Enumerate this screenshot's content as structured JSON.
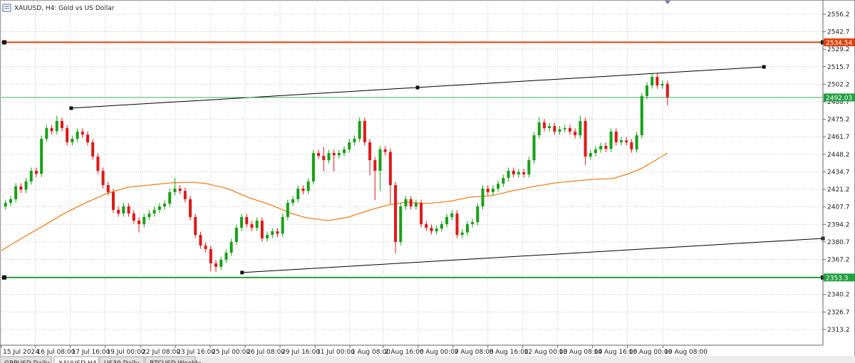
{
  "chart_data": {
    "type": "candlestick",
    "title": "XAUUSD, H4:  Gold vs US Dollar",
    "xlim": [
      -0.8,
      159.3
    ],
    "ylim": [
      2301.1,
      2564.4
    ],
    "grid": true,
    "up_color": "#18a018",
    "down_color": "#e01818",
    "xticks": [
      {
        "value": -0.8,
        "label": "15 Jul 2024"
      },
      {
        "value": 5.8,
        "label": "16 Jul 08:00"
      },
      {
        "value": 12.6,
        "label": "17 Jul 16:00"
      },
      {
        "value": 19.4,
        "label": "19 Jul 00:00"
      },
      {
        "value": 26.3,
        "label": "22 Jul 08:00"
      },
      {
        "value": 33.1,
        "label": "23 Jul 16:00"
      },
      {
        "value": 39.9,
        "label": "25 Jul 00:00"
      },
      {
        "value": 46.7,
        "label": "26 Jul 08:00"
      },
      {
        "value": 53.5,
        "label": "29 Jul 16:00"
      },
      {
        "value": 60.3,
        "label": "31 Jul 00:00"
      },
      {
        "value": 67.1,
        "label": "1 Aug 08:00"
      },
      {
        "value": 73.6,
        "label": "2 Aug 16:00"
      },
      {
        "value": 80.4,
        "label": "6 Aug 00:00"
      },
      {
        "value": 87.2,
        "label": "7 Aug 08:00"
      },
      {
        "value": 94.0,
        "label": "8 Aug 16:00"
      },
      {
        "value": 100.8,
        "label": "12 Aug 00:00"
      },
      {
        "value": 107.6,
        "label": "13 Aug 08:00"
      },
      {
        "value": 114.4,
        "label": "14 Aug 16:00"
      },
      {
        "value": 121.2,
        "label": "16 Aug 00:00"
      },
      {
        "value": 128.1,
        "label": "19 Aug 08:00"
      }
    ],
    "yticks": [
      2313.2,
      2326.7,
      2340.2,
      2353.7,
      2367.2,
      2380.7,
      2394.2,
      2407.7,
      2421.2,
      2434.7,
      2448.2,
      2461.7,
      2475.2,
      2488.7,
      2502.2,
      2515.7,
      2529.2,
      2542.7,
      2556.2
    ],
    "open": [
      2408.1,
      2410.8,
      2413.6,
      2423.5,
      2421.0,
      2427.3,
      2435.5,
      2433.2,
      2460.2,
      2468.4,
      2466.0,
      2473.9,
      2468.4,
      2457.5,
      2460.2,
      2465.7,
      2463.4,
      2457.5,
      2446.5,
      2435.5,
      2424.5,
      2419.1,
      2405.4,
      2402.6,
      2408.1,
      2402.6,
      2397.1,
      2394.4,
      2399.9,
      2402.6,
      2405.4,
      2408.1,
      2410.2,
      2419.1,
      2421.8,
      2420.0,
      2413.6,
      2399.9,
      2386.1,
      2377.9,
      2375.2,
      2364.2,
      2361.5,
      2367.0,
      2372.4,
      2380.7,
      2391.6,
      2399.9,
      2394.4,
      2391.6,
      2397.1,
      2383.4,
      2386.1,
      2388.9,
      2387.0,
      2399.9,
      2410.8,
      2413.6,
      2421.8,
      2420.0,
      2427.3,
      2449.2,
      2447.0,
      2443.7,
      2449.2,
      2447.5,
      2449.2,
      2452.0,
      2457.5,
      2460.2,
      2473.9,
      2457.5,
      2443.7,
      2435.5,
      2452.0,
      2450.0,
      2424.5,
      2380.7,
      2408.1,
      2413.6,
      2408.1,
      2410.8,
      2394.4,
      2391.6,
      2388.9,
      2391.0,
      2394.4,
      2399.9,
      2402.6,
      2386.1,
      2388.0,
      2394.4,
      2396.0,
      2408.1,
      2421.8,
      2419.1,
      2421.8,
      2425.6,
      2430.0,
      2435.5,
      2432.8,
      2434.5,
      2432.8,
      2443.7,
      2462.9,
      2472.8,
      2468.4,
      2470.0,
      2465.7,
      2467.5,
      2468.4,
      2465.7,
      2462.9,
      2473.9,
      2446.5,
      2449.2,
      2452.0,
      2454.7,
      2452.5,
      2465.7,
      2457.5,
      2459.0,
      2457.5,
      2452.0,
      2462.9,
      2493.1,
      2501.3,
      2507.9,
      2501.3,
      2502.5
    ],
    "high": [
      2413.3,
      2416.1,
      2426.0,
      2426.0,
      2429.8,
      2438.0,
      2438.0,
      2462.7,
      2470.9,
      2470.9,
      2478.0,
      2476.4,
      2470.9,
      2462.7,
      2468.2,
      2468.2,
      2465.9,
      2460.0,
      2449.0,
      2438.0,
      2427.0,
      2421.6,
      2407.9,
      2410.6,
      2410.6,
      2405.1,
      2399.6,
      2402.4,
      2405.1,
      2407.9,
      2410.6,
      2412.7,
      2421.6,
      2430.0,
      2424.3,
      2422.5,
      2416.1,
      2402.4,
      2388.6,
      2380.4,
      2377.7,
      2366.7,
      2369.5,
      2374.9,
      2383.2,
      2394.1,
      2402.4,
      2402.4,
      2396.9,
      2399.6,
      2399.6,
      2388.6,
      2391.4,
      2391.4,
      2402.4,
      2413.3,
      2416.1,
      2424.3,
      2424.3,
      2429.8,
      2451.7,
      2451.7,
      2454.0,
      2451.7,
      2451.7,
      2451.7,
      2454.5,
      2460.0,
      2462.7,
      2476.7,
      2476.4,
      2460.0,
      2446.2,
      2454.5,
      2454.5,
      2452.5,
      2427.0,
      2410.6,
      2416.1,
      2416.1,
      2413.3,
      2413.3,
      2396.9,
      2394.1,
      2393.5,
      2396.9,
      2402.4,
      2405.1,
      2405.1,
      2390.5,
      2396.9,
      2398.5,
      2410.6,
      2424.3,
      2424.3,
      2424.3,
      2428.1,
      2432.5,
      2438.0,
      2438.0,
      2437.0,
      2437.0,
      2446.2,
      2465.4,
      2477.0,
      2475.3,
      2472.5,
      2472.5,
      2470.0,
      2470.9,
      2470.9,
      2468.2,
      2478.0,
      2476.4,
      2451.7,
      2454.5,
      2457.2,
      2457.2,
      2468.2,
      2468.2,
      2461.5,
      2461.5,
      2460.0,
      2465.4,
      2495.6,
      2503.8,
      2510.7,
      2510.4,
      2505.0,
      2505.0
    ],
    "low": [
      2405.6,
      2408.3,
      2411.1,
      2418.5,
      2418.5,
      2424.8,
      2430.7,
      2430.7,
      2457.7,
      2463.5,
      2463.5,
      2465.9,
      2455.0,
      2455.0,
      2457.7,
      2460.9,
      2455.0,
      2444.0,
      2433.0,
      2422.0,
      2416.6,
      2402.9,
      2400.1,
      2400.1,
      2400.1,
      2394.6,
      2388.0,
      2391.9,
      2397.4,
      2400.1,
      2402.9,
      2405.6,
      2407.7,
      2416.6,
      2417.5,
      2411.1,
      2397.4,
      2383.6,
      2375.4,
      2372.7,
      2358.0,
      2357.5,
      2359.0,
      2364.5,
      2369.9,
      2378.2,
      2389.1,
      2391.9,
      2389.1,
      2389.1,
      2380.9,
      2380.9,
      2383.6,
      2384.5,
      2384.5,
      2397.4,
      2408.3,
      2411.1,
      2417.5,
      2417.5,
      2424.8,
      2444.5,
      2435.0,
      2441.2,
      2435.0,
      2445.0,
      2446.7,
      2449.5,
      2455.0,
      2457.7,
      2455.0,
      2432.0,
      2413.0,
      2420.0,
      2447.5,
      2410.0,
      2372.0,
      2378.2,
      2405.6,
      2405.6,
      2405.6,
      2391.9,
      2389.1,
      2386.4,
      2386.4,
      2388.5,
      2391.9,
      2397.4,
      2383.6,
      2383.6,
      2385.5,
      2391.9,
      2393.5,
      2405.6,
      2416.6,
      2416.6,
      2419.3,
      2423.1,
      2427.5,
      2430.3,
      2430.3,
      2430.3,
      2430.3,
      2441.2,
      2460.4,
      2465.9,
      2465.9,
      2463.2,
      2463.2,
      2465.0,
      2463.2,
      2460.4,
      2460.4,
      2440.0,
      2444.0,
      2446.7,
      2449.5,
      2450.0,
      2450.0,
      2455.0,
      2455.0,
      2455.0,
      2449.5,
      2449.5,
      2460.4,
      2490.6,
      2498.8,
      2498.8,
      2498.8,
      2486.0
    ],
    "close": [
      2410.8,
      2413.6,
      2423.5,
      2421.0,
      2427.3,
      2435.5,
      2433.2,
      2460.2,
      2468.4,
      2466.0,
      2473.9,
      2468.4,
      2457.5,
      2460.2,
      2465.7,
      2463.4,
      2457.5,
      2446.5,
      2435.5,
      2424.5,
      2419.1,
      2405.4,
      2402.6,
      2408.1,
      2402.6,
      2397.1,
      2394.4,
      2399.9,
      2402.6,
      2405.4,
      2408.1,
      2410.2,
      2419.1,
      2421.8,
      2420.0,
      2413.6,
      2399.9,
      2386.1,
      2377.9,
      2375.2,
      2364.2,
      2361.5,
      2367.0,
      2372.4,
      2380.7,
      2391.6,
      2399.9,
      2394.4,
      2391.6,
      2397.1,
      2383.4,
      2386.1,
      2388.9,
      2387.0,
      2399.9,
      2410.8,
      2413.6,
      2421.8,
      2420.0,
      2427.3,
      2449.2,
      2447.0,
      2443.7,
      2449.2,
      2447.5,
      2449.2,
      2452.0,
      2457.5,
      2460.2,
      2473.9,
      2457.5,
      2443.7,
      2435.5,
      2452.0,
      2450.0,
      2424.5,
      2380.7,
      2408.1,
      2413.6,
      2408.1,
      2410.8,
      2394.4,
      2391.6,
      2388.9,
      2391.0,
      2394.4,
      2399.9,
      2402.6,
      2386.1,
      2388.0,
      2394.4,
      2396.0,
      2408.1,
      2421.8,
      2419.1,
      2421.8,
      2425.6,
      2430.0,
      2435.5,
      2432.8,
      2434.5,
      2432.8,
      2443.7,
      2462.9,
      2472.8,
      2468.4,
      2470.0,
      2465.7,
      2467.5,
      2468.4,
      2465.7,
      2462.9,
      2473.9,
      2446.5,
      2449.2,
      2452.0,
      2454.7,
      2452.5,
      2465.7,
      2457.5,
      2459.0,
      2457.5,
      2452.0,
      2462.9,
      2493.1,
      2501.3,
      2507.9,
      2501.3,
      2502.5,
      2492.0
    ],
    "ma": {
      "color": "#f0801e",
      "x": [
        -0.8,
        3.1,
        7.2,
        11.4,
        15.6,
        19.7,
        23.9,
        28.1,
        32.2,
        36.4,
        39.2,
        43.3,
        47.5,
        51.7,
        55.8,
        58.6,
        62.8,
        66.9,
        71.1,
        74.6,
        78.1,
        82.2,
        86.4,
        90.6,
        94.7,
        98.9,
        103.1,
        107.2,
        111.4,
        114.2,
        118.3,
        121.1,
        123.9,
        126.7,
        129.0
      ],
      "values": [
        2374.1,
        2383.4,
        2392.7,
        2402.6,
        2410.8,
        2418.0,
        2422.9,
        2424.5,
        2426.2,
        2426.7,
        2425.6,
        2421.8,
        2414.7,
        2409.2,
        2402.6,
        2399.3,
        2397.1,
        2399.9,
        2405.4,
        2409.2,
        2411.4,
        2410.3,
        2411.9,
        2415.2,
        2416.3,
        2420.2,
        2423.5,
        2426.2,
        2427.8,
        2428.9,
        2429.5,
        2432.8,
        2437.2,
        2443.7,
        2449.2
      ]
    },
    "trendlines": [
      {
        "color": "#000000",
        "x": [
          12.8,
          80.3,
          147.8
        ],
        "values": [
          2483.8,
          2499.7,
          2515.6
        ]
      },
      {
        "color": "#000000",
        "x": [
          46.1,
          159.3
        ],
        "values": [
          2357.1,
          2383.4
        ]
      }
    ],
    "hlines": [
      {
        "value": 2534.54,
        "color": "#e0400a"
      },
      {
        "value": 2492.03,
        "color": "#20a040"
      },
      {
        "value": 2353.3,
        "color": "#20a040"
      }
    ]
  },
  "tabs": [
    "GBPUSD,Daily",
    "XAUUSD,H4",
    "US30,Daily",
    "BTCUSD,Weekly"
  ]
}
